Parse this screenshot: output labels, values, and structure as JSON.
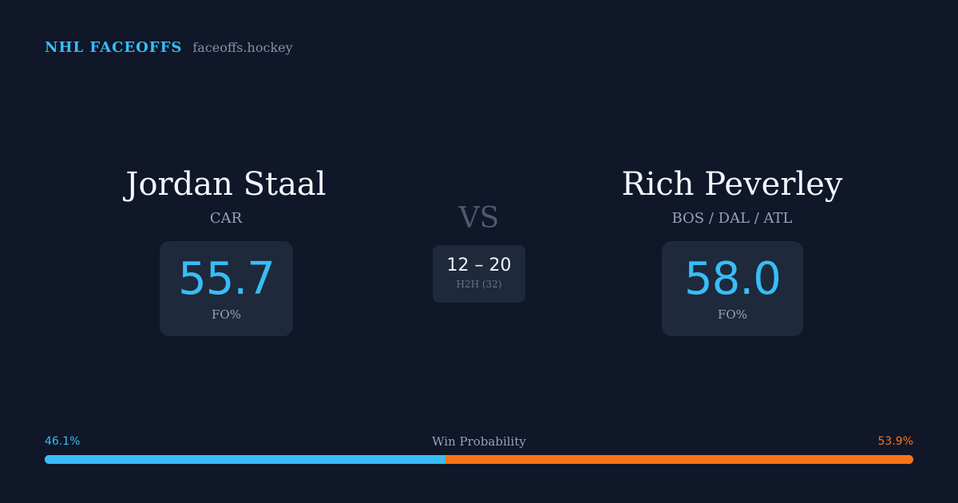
{
  "brand": {
    "name": "NHL FACEOFFS",
    "site": "faceoffs.hockey"
  },
  "left_player": {
    "name": "Jordan Staal",
    "team": "CAR",
    "fo_pct": "55.7",
    "fo_label": "FO%"
  },
  "right_player": {
    "name": "Rich Peverley",
    "team": "BOS / DAL / ATL",
    "fo_pct": "58.0",
    "fo_label": "FO%"
  },
  "versus": {
    "label": "VS",
    "h2h_score": "12 – 20",
    "h2h_label": "H2H (32)"
  },
  "win_probability": {
    "title": "Win Probability",
    "left_label": "46.1%",
    "right_label": "53.9%",
    "left_value": 46.1,
    "right_value": 53.9,
    "left_color": "#38bdf8",
    "right_color": "#f97316"
  },
  "colors": {
    "background": "#0f1729",
    "card": "#1e293b",
    "accent": "#38bdf8",
    "orange": "#f97316"
  }
}
